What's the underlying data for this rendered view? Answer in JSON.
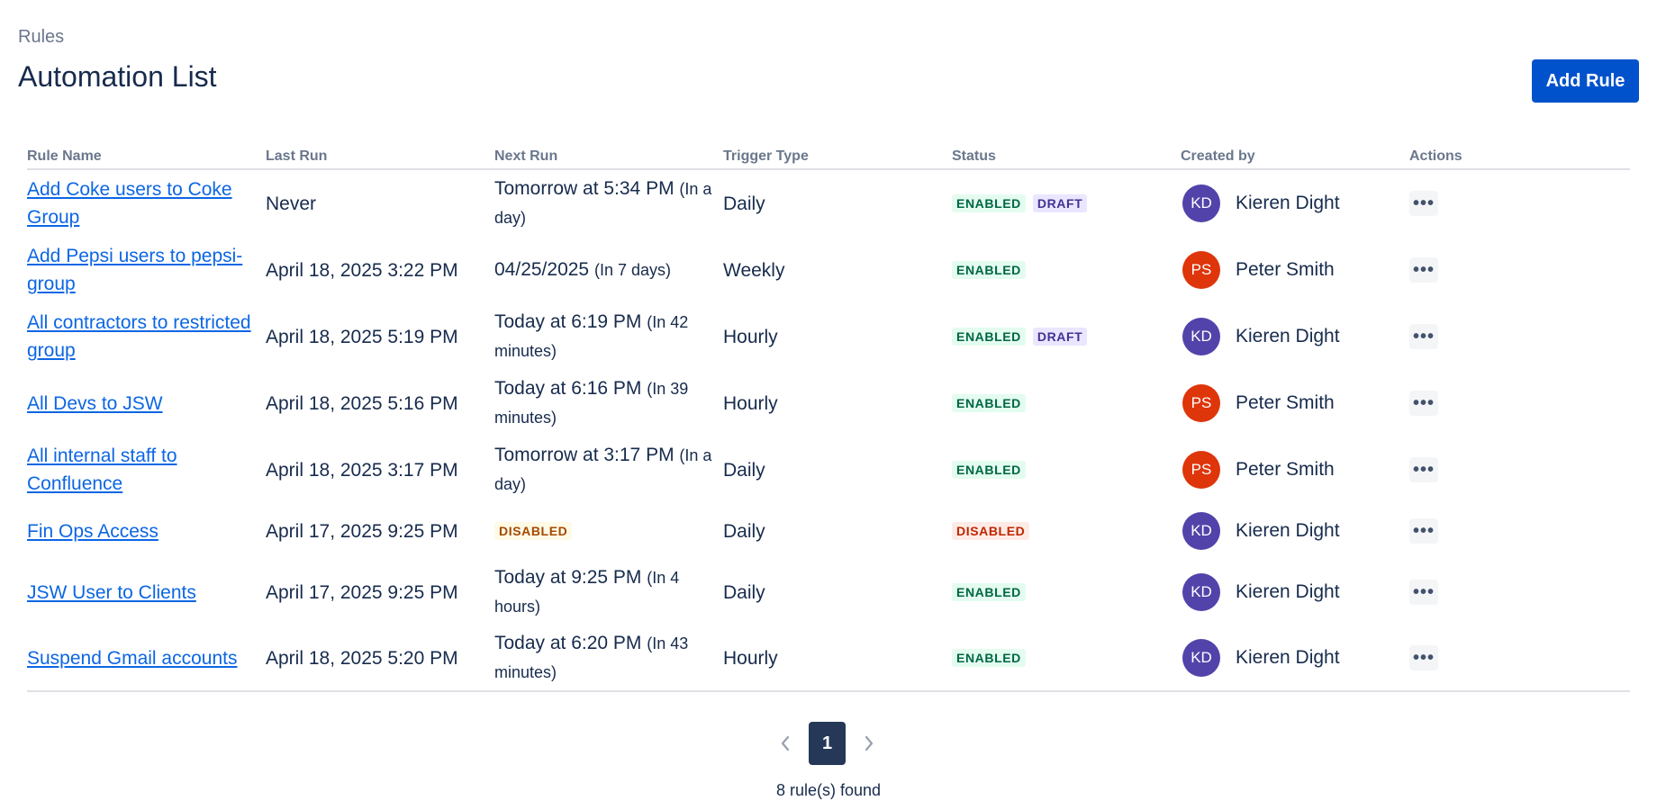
{
  "breadcrumb": "Rules",
  "title": "Automation List",
  "add_button": "Add Rule",
  "headers": [
    "Rule Name",
    "Last Run",
    "Next Run",
    "Trigger Type",
    "Status",
    "Created by",
    "Actions"
  ],
  "rows": [
    {
      "name": "Add Coke users to Coke Group",
      "last_run": "Never",
      "next_main": "Tomorrow at 5:34 PM",
      "next_sub": "(In a day)",
      "trigger": "Daily",
      "status": [
        "ENABLED",
        "DRAFT"
      ],
      "initials": "KD",
      "creator": "Kieren Dight"
    },
    {
      "name": "Add Pepsi users to pepsi-group",
      "last_run": "April 18, 2025 3:22 PM",
      "next_main": "04/25/2025",
      "next_sub": "(In 7 days)",
      "trigger": "Weekly",
      "status": [
        "ENABLED"
      ],
      "initials": "PS",
      "creator": "Peter Smith"
    },
    {
      "name": "All contractors to restricted group",
      "last_run": "April 18, 2025 5:19 PM",
      "next_main": "Today at 6:19 PM",
      "next_sub": "(In 42 minutes)",
      "trigger": "Hourly",
      "status": [
        "ENABLED",
        "DRAFT"
      ],
      "initials": "KD",
      "creator": "Kieren Dight"
    },
    {
      "name": "All Devs to JSW",
      "last_run": "April 18, 2025 5:16 PM",
      "next_main": "Today at 6:16 PM",
      "next_sub": "(In 39 minutes)",
      "trigger": "Hourly",
      "status": [
        "ENABLED"
      ],
      "initials": "PS",
      "creator": "Peter Smith"
    },
    {
      "name": "All internal staff to Confluence",
      "last_run": "April 18, 2025 3:17 PM",
      "next_main": "Tomorrow at 3:17 PM",
      "next_sub": "(In a day)",
      "trigger": "Daily",
      "status": [
        "ENABLED"
      ],
      "initials": "PS",
      "creator": "Peter Smith"
    },
    {
      "name": "Fin Ops Access",
      "last_run": "April 17, 2025 9:25 PM",
      "next_lozenge": "DISABLED",
      "trigger": "Daily",
      "status": [
        "DISABLED"
      ],
      "initials": "KD",
      "creator": "Kieren Dight"
    },
    {
      "name": "JSW User to Clients",
      "last_run": "April 17, 2025 9:25 PM",
      "next_main": "Today at 9:25 PM",
      "next_sub": "(In 4 hours)",
      "trigger": "Daily",
      "status": [
        "ENABLED"
      ],
      "initials": "KD",
      "creator": "Kieren Dight"
    },
    {
      "name": "Suspend Gmail accounts",
      "last_run": "April 18, 2025 5:20 PM",
      "next_main": "Today at 6:20 PM",
      "next_sub": "(In 43 minutes)",
      "trigger": "Hourly",
      "status": [
        "ENABLED"
      ],
      "initials": "KD",
      "creator": "Kieren Dight"
    }
  ],
  "avatar_colors": {
    "KD": "#5243aa",
    "PS": "#de350b"
  },
  "pagination": {
    "current": "1",
    "prev_icon": "chevron-left-icon",
    "next_icon": "chevron-right-icon"
  },
  "count_text": "8 rule(s) found"
}
